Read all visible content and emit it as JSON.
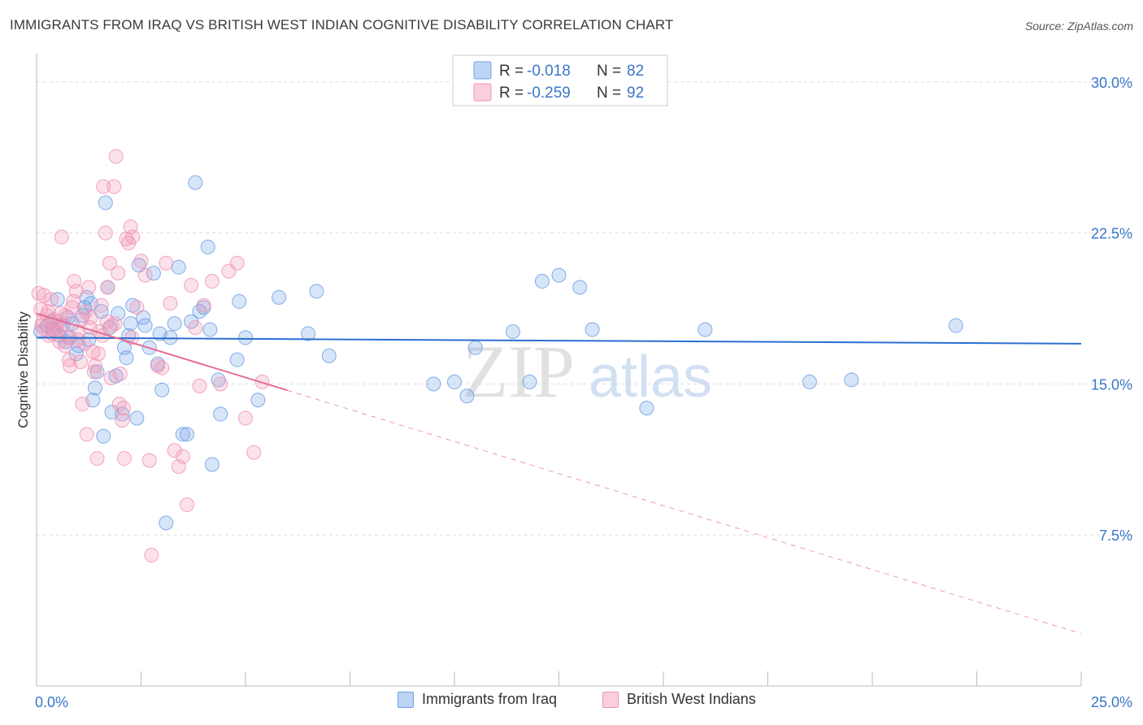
{
  "title": "IMMIGRANTS FROM IRAQ VS BRITISH WEST INDIAN COGNITIVE DISABILITY CORRELATION CHART",
  "source": "Source: ZipAtlas.com",
  "watermark": {
    "zip": "ZIP",
    "atlas": "atlas"
  },
  "colors": {
    "blue": "#6fa0e6",
    "blue_line": "#2a6fd0",
    "pink": "#f295b4",
    "pink_line": "#e46d93",
    "axis_text": "#3a76c8",
    "grid": "#dddddd"
  },
  "legend": {
    "series": [
      {
        "r_label": "R =",
        "r_value": "-0.018",
        "n_label": "N =",
        "n_value": "82"
      },
      {
        "r_label": "R =",
        "r_value": "-0.259",
        "n_label": "N =",
        "n_value": "92"
      }
    ]
  },
  "chart_data": {
    "type": "scatter",
    "title": "IMMIGRANTS FROM IRAQ VS BRITISH WEST INDIAN COGNITIVE DISABILITY CORRELATION CHART",
    "xlabel": "",
    "ylabel": "Cognitive Disability",
    "xlim": [
      0,
      25
    ],
    "ylim": [
      0,
      31
    ],
    "x_tick_labels": [
      "0.0%",
      "25.0%"
    ],
    "y_ticks": [
      7.5,
      15.0,
      22.5,
      30.0
    ],
    "y_tick_labels": [
      "7.5%",
      "15.0%",
      "22.5%",
      "30.0%"
    ],
    "grid": true,
    "series": [
      {
        "name": "Immigrants from Iraq",
        "color": "blue",
        "trend": {
          "x0": 0.0,
          "y0": 17.3,
          "x1": 25.0,
          "y1": 17.0,
          "dashed_from": null
        },
        "points": [
          [
            0.1,
            17.6
          ],
          [
            0.25,
            17.9
          ],
          [
            0.35,
            18.1
          ],
          [
            0.4,
            17.7
          ],
          [
            0.5,
            19.2
          ],
          [
            0.55,
            17.4
          ],
          [
            0.6,
            17.9
          ],
          [
            0.75,
            18.3
          ],
          [
            0.8,
            17.3
          ],
          [
            0.85,
            18.0
          ],
          [
            0.95,
            16.5
          ],
          [
            1.0,
            16.9
          ],
          [
            1.1,
            18.4
          ],
          [
            1.15,
            18.8
          ],
          [
            1.2,
            19.3
          ],
          [
            1.25,
            17.2
          ],
          [
            1.3,
            19.0
          ],
          [
            1.35,
            14.2
          ],
          [
            1.4,
            14.8
          ],
          [
            1.45,
            15.6
          ],
          [
            1.55,
            18.6
          ],
          [
            1.6,
            12.4
          ],
          [
            1.65,
            24.0
          ],
          [
            1.7,
            19.8
          ],
          [
            1.8,
            13.6
          ],
          [
            1.9,
            15.4
          ],
          [
            1.95,
            18.5
          ],
          [
            2.05,
            13.5
          ],
          [
            2.1,
            16.8
          ],
          [
            2.2,
            17.4
          ],
          [
            2.25,
            18.0
          ],
          [
            2.3,
            18.9
          ],
          [
            2.4,
            13.3
          ],
          [
            2.45,
            20.9
          ],
          [
            2.55,
            18.3
          ],
          [
            2.6,
            17.9
          ],
          [
            2.7,
            16.8
          ],
          [
            2.8,
            20.5
          ],
          [
            2.9,
            16.0
          ],
          [
            2.95,
            17.5
          ],
          [
            3.0,
            14.7
          ],
          [
            3.1,
            8.1
          ],
          [
            3.2,
            17.3
          ],
          [
            3.3,
            18.0
          ],
          [
            3.4,
            20.8
          ],
          [
            3.5,
            12.5
          ],
          [
            3.6,
            12.5
          ],
          [
            3.7,
            18.1
          ],
          [
            3.8,
            25.0
          ],
          [
            3.9,
            18.6
          ],
          [
            4.0,
            18.8
          ],
          [
            4.1,
            21.8
          ],
          [
            4.15,
            17.7
          ],
          [
            4.2,
            11.0
          ],
          [
            4.35,
            15.2
          ],
          [
            4.4,
            13.5
          ],
          [
            4.8,
            16.2
          ],
          [
            4.85,
            19.1
          ],
          [
            5.0,
            17.3
          ],
          [
            5.3,
            14.2
          ],
          [
            5.8,
            19.3
          ],
          [
            6.5,
            17.5
          ],
          [
            6.7,
            19.6
          ],
          [
            7.0,
            16.4
          ],
          [
            9.5,
            15.0
          ],
          [
            10.0,
            15.1
          ],
          [
            10.3,
            14.4
          ],
          [
            10.5,
            16.8
          ],
          [
            11.4,
            17.6
          ],
          [
            11.8,
            15.1
          ],
          [
            12.1,
            20.1
          ],
          [
            12.5,
            20.4
          ],
          [
            13.0,
            19.8
          ],
          [
            13.3,
            17.7
          ],
          [
            14.6,
            13.8
          ],
          [
            16.0,
            17.7
          ],
          [
            18.5,
            15.1
          ],
          [
            19.5,
            15.2
          ],
          [
            22.0,
            17.9
          ],
          [
            2.15,
            16.3
          ],
          [
            0.7,
            17.1
          ],
          [
            1.75,
            17.8
          ]
        ]
      },
      {
        "name": "British West Indians",
        "color": "pink",
        "trend": {
          "x0": 0.0,
          "y0": 18.5,
          "x1": 25.0,
          "y1": 2.6,
          "dashed_from": 6.0
        },
        "points": [
          [
            0.05,
            19.5
          ],
          [
            0.1,
            18.7
          ],
          [
            0.15,
            18.1
          ],
          [
            0.2,
            17.7
          ],
          [
            0.25,
            18.4
          ],
          [
            0.3,
            17.4
          ],
          [
            0.35,
            19.2
          ],
          [
            0.4,
            18.2
          ],
          [
            0.45,
            17.6
          ],
          [
            0.5,
            18.1
          ],
          [
            0.55,
            17.1
          ],
          [
            0.6,
            22.3
          ],
          [
            0.65,
            17.9
          ],
          [
            0.7,
            18.4
          ],
          [
            0.75,
            17.3
          ],
          [
            0.8,
            15.9
          ],
          [
            0.85,
            18.8
          ],
          [
            0.9,
            20.1
          ],
          [
            0.95,
            19.6
          ],
          [
            1.0,
            17.6
          ],
          [
            1.05,
            16.1
          ],
          [
            1.1,
            14.0
          ],
          [
            1.15,
            17.0
          ],
          [
            1.2,
            12.5
          ],
          [
            1.25,
            19.8
          ],
          [
            1.3,
            18.3
          ],
          [
            1.35,
            16.6
          ],
          [
            1.4,
            15.9
          ],
          [
            1.45,
            11.3
          ],
          [
            1.5,
            17.6
          ],
          [
            1.55,
            18.9
          ],
          [
            1.6,
            24.8
          ],
          [
            1.65,
            22.5
          ],
          [
            1.7,
            19.8
          ],
          [
            1.75,
            21.0
          ],
          [
            1.8,
            17.9
          ],
          [
            1.85,
            24.8
          ],
          [
            1.9,
            26.3
          ],
          [
            1.95,
            20.5
          ],
          [
            2.0,
            15.5
          ],
          [
            2.05,
            13.2
          ],
          [
            2.1,
            11.3
          ],
          [
            2.15,
            22.2
          ],
          [
            2.2,
            22.0
          ],
          [
            2.25,
            22.8
          ],
          [
            2.3,
            22.3
          ],
          [
            2.4,
            18.8
          ],
          [
            2.5,
            21.1
          ],
          [
            2.6,
            20.4
          ],
          [
            2.7,
            11.2
          ],
          [
            2.75,
            6.5
          ],
          [
            2.9,
            15.9
          ],
          [
            3.0,
            15.8
          ],
          [
            3.1,
            21.0
          ],
          [
            3.2,
            19.0
          ],
          [
            3.3,
            11.7
          ],
          [
            3.4,
            10.9
          ],
          [
            3.5,
            11.4
          ],
          [
            3.6,
            9.0
          ],
          [
            3.7,
            19.9
          ],
          [
            3.8,
            17.8
          ],
          [
            3.9,
            14.9
          ],
          [
            4.0,
            18.9
          ],
          [
            4.2,
            20.1
          ],
          [
            4.4,
            15.0
          ],
          [
            4.6,
            20.6
          ],
          [
            4.8,
            21.0
          ],
          [
            5.0,
            13.3
          ],
          [
            5.2,
            11.6
          ],
          [
            5.4,
            15.1
          ],
          [
            0.12,
            17.9
          ],
          [
            0.28,
            18.6
          ],
          [
            0.48,
            17.8
          ],
          [
            0.68,
            16.9
          ],
          [
            0.88,
            19.1
          ],
          [
            1.08,
            18.2
          ],
          [
            1.28,
            17.8
          ],
          [
            1.48,
            16.5
          ],
          [
            1.68,
            18.1
          ],
          [
            1.88,
            18.0
          ],
          [
            2.08,
            13.8
          ],
          [
            2.28,
            17.3
          ],
          [
            0.18,
            19.4
          ],
          [
            0.38,
            17.5
          ],
          [
            0.58,
            18.5
          ],
          [
            0.78,
            16.2
          ],
          [
            0.98,
            17.2
          ],
          [
            1.18,
            18.6
          ],
          [
            1.38,
            15.6
          ],
          [
            1.58,
            17.4
          ],
          [
            1.78,
            15.3
          ],
          [
            1.98,
            14.0
          ]
        ]
      }
    ]
  },
  "bottom_legend": [
    {
      "label": "Immigrants from Iraq"
    },
    {
      "label": "British West Indians"
    }
  ]
}
